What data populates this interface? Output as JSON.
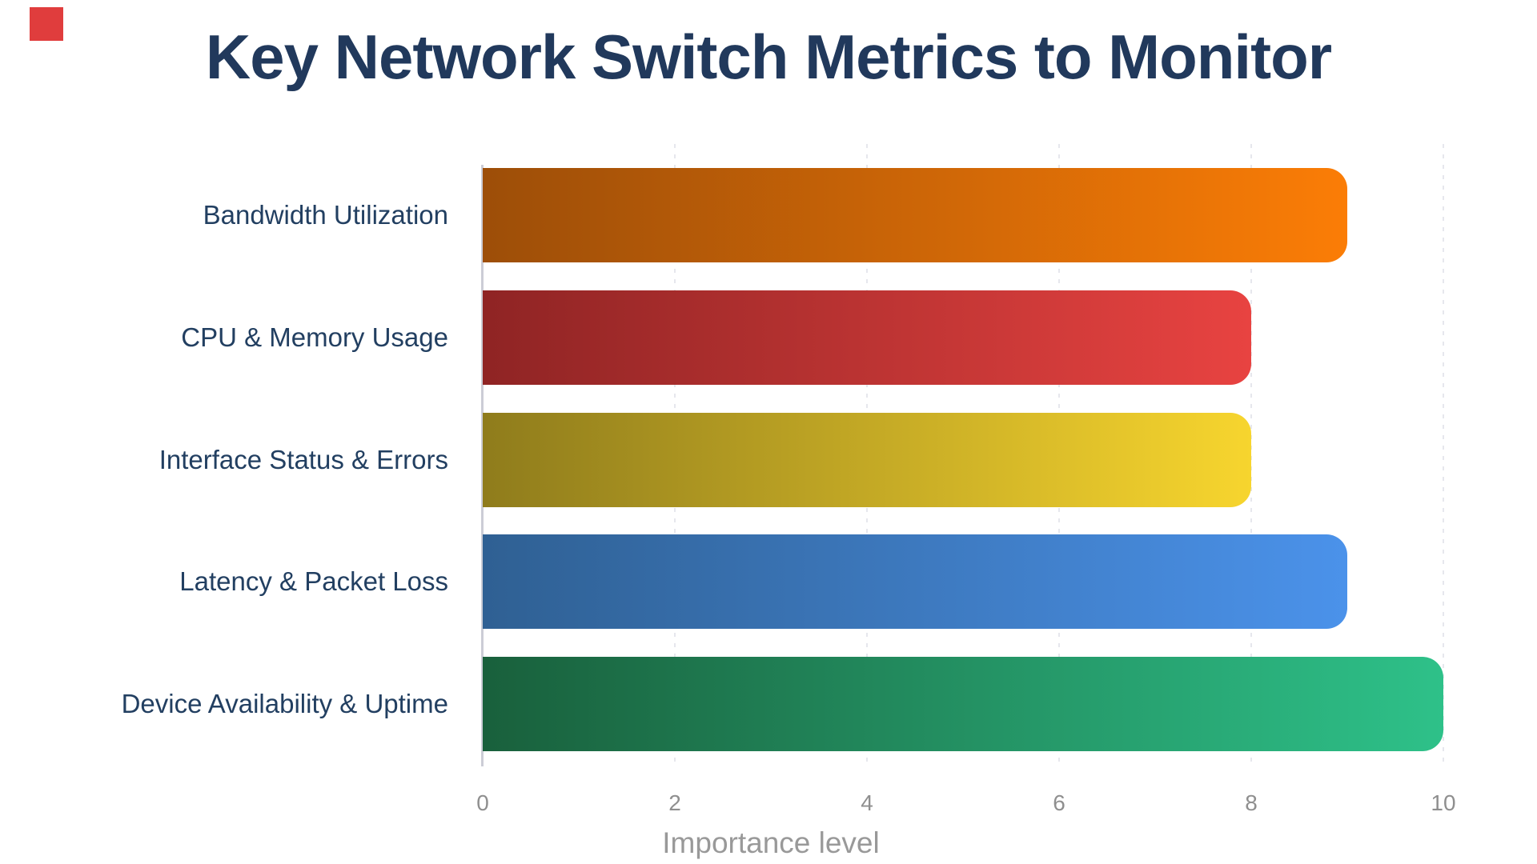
{
  "title": "Key Network Switch Metrics to Monitor",
  "decor": {
    "corner_square_color": "#e03d3d"
  },
  "colors": {
    "background": "#ffffff",
    "title_text": "#21395c",
    "label_text": "#223f61",
    "tick_text": "#8f8f8f",
    "axis_title_text": "#999999",
    "axis_line": "#cccdd6",
    "gridline": "#e6e7ed"
  },
  "chart_data": {
    "type": "bar",
    "orientation": "horizontal",
    "title": "Key Network Switch Metrics to Monitor",
    "categories": [
      "Bandwidth Utilization",
      "CPU & Memory Usage",
      "Interface Status & Errors",
      "Latency & Packet Loss",
      "Device Availability & Uptime"
    ],
    "values": [
      9,
      8,
      8,
      9,
      10
    ],
    "xlabel": "Importance level",
    "ylabel": "",
    "xlim": [
      0,
      10
    ],
    "xticks": [
      0,
      2,
      4,
      6,
      8,
      10
    ],
    "grid": "vertical-dashed",
    "legend": false,
    "bar_gradients": [
      {
        "from": "#9d4e08",
        "to": "#fb7d06"
      },
      {
        "from": "#8f2424",
        "to": "#e84341"
      },
      {
        "from": "#8f7c1c",
        "to": "#f7d52e"
      },
      {
        "from": "#2f6093",
        "to": "#4b92ea"
      },
      {
        "from": "#19603c",
        "to": "#2ec189"
      }
    ]
  }
}
